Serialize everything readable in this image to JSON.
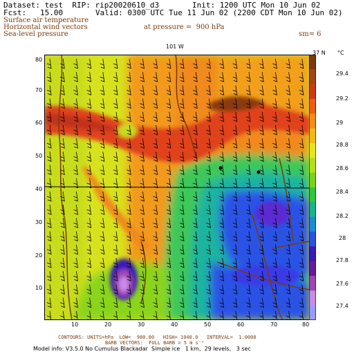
{
  "header": {
    "dataset": "Dataset: test  RIP: rip20020610_d3",
    "init": "Init: 1200 UTC Mon 10 Jun 02",
    "fcst": "Fcst:   15.00",
    "valid": "Valid: 0300 UTC Tue 11 Jun 02 (2200 CDT Mon 10 Jun 02)"
  },
  "fields": {
    "line1": "Surface air temperature",
    "line2": "Horizontal wind vectors",
    "line3": "Sea-level pressure",
    "pressure": "at pressure =  900 hPa",
    "smooth": "sm= 6"
  },
  "map": {
    "top_label": "101 W",
    "corner_label": "37 N",
    "x_ticks": [
      "10",
      "20",
      "30",
      "40",
      "50",
      "60",
      "70",
      "80"
    ],
    "y_ticks": [
      "10",
      "20",
      "30",
      "40",
      "50",
      "60",
      "70",
      "80"
    ],
    "x_range": [
      1,
      81
    ],
    "y_range": [
      1,
      81
    ],
    "colorbar": {
      "unit": "°C",
      "labels": [
        "29.4",
        "29.2",
        "29",
        "28.8",
        "28.6",
        "28.4",
        "28.2",
        "28",
        "27.8",
        "27.6",
        "27.4"
      ],
      "colors": [
        "#7a3a0a",
        "#a0461a",
        "#cc3a1a",
        "#f05a1a",
        "#f28c1a",
        "#f2b81a",
        "#e6e61a",
        "#b4e01a",
        "#7ad21a",
        "#2ec83a",
        "#18b48c",
        "#1a8cd2",
        "#2a52e6",
        "#3a1ab4",
        "#6a1a96",
        "#a046b4",
        "#c88ce6",
        "#9a9aff"
      ]
    }
  },
  "footer": {
    "contours": "CONTOURS: UNITS=hPa  LOW=  980.00   HIGH= 1040.0   INTERVAL=  1.0000",
    "barbs": "BARB VECTORS:  FULL BARB = 5 m s⁻¹",
    "model": "Model info: V3.5.0 No Cumulus Blackadar  Simple ice   1 km,  29 levels,   3 sec"
  }
}
